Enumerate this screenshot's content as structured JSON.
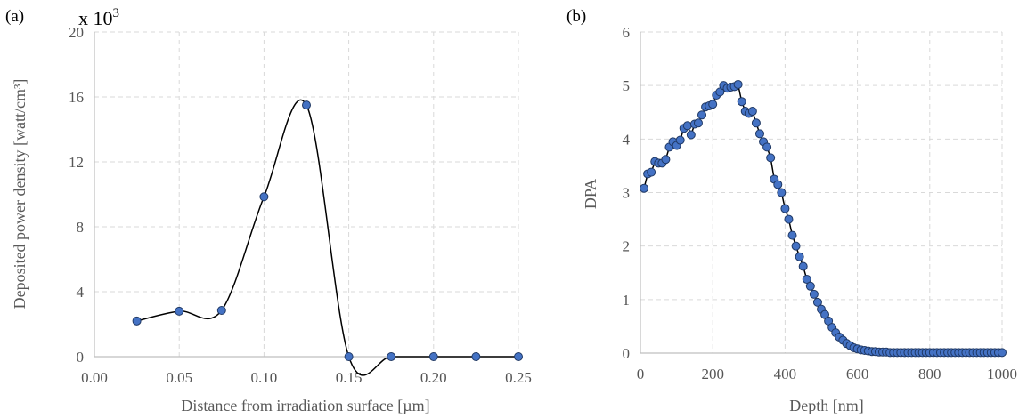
{
  "colors": {
    "marker_fill": "#4472c4",
    "marker_edge": "#1f3864",
    "line": "#000000",
    "grid": "#d9d9d9"
  },
  "chart_data": [
    {
      "type": "scatter",
      "panel_label": "(a)",
      "multiplier_base": "x 10",
      "multiplier_exp": "3",
      "xlabel": "Distance from irradiation surface [µm]",
      "ylabel": "Deposited power density [watt/cm³]",
      "xlim": [
        0,
        0.25
      ],
      "ylim": [
        0,
        20
      ],
      "xticks": [
        0,
        0.05,
        0.1,
        0.15,
        0.2,
        0.25
      ],
      "xtick_labels": [
        "0.00",
        "0.05",
        "0.10",
        "0.15",
        "0.20",
        "0.25"
      ],
      "yticks": [
        0,
        4,
        8,
        12,
        16,
        20
      ],
      "ytick_labels": [
        "0",
        "4",
        "8",
        "12",
        "16",
        "20"
      ],
      "grid": true,
      "smooth_line": true,
      "x": [
        0.025,
        0.05,
        0.075,
        0.1,
        0.125,
        0.15,
        0.175,
        0.2,
        0.225,
        0.25
      ],
      "y": [
        2.2,
        2.8,
        2.85,
        9.85,
        15.5,
        0,
        0,
        0,
        0,
        0
      ]
    },
    {
      "type": "line",
      "panel_label": "(b)",
      "xlabel": "Depth [nm]",
      "ylabel": "DPA",
      "xlim": [
        0,
        1000
      ],
      "ylim": [
        0,
        6
      ],
      "xticks": [
        0,
        200,
        400,
        600,
        800,
        1000
      ],
      "xtick_labels": [
        "0",
        "200",
        "400",
        "600",
        "800",
        "1000"
      ],
      "yticks": [
        0,
        1,
        2,
        3,
        4,
        5,
        6
      ],
      "ytick_labels": [
        "0",
        "1",
        "2",
        "3",
        "4",
        "5",
        "6"
      ],
      "grid": true,
      "x": [
        10,
        20,
        30,
        40,
        50,
        60,
        70,
        80,
        90,
        100,
        110,
        120,
        130,
        140,
        150,
        160,
        170,
        180,
        190,
        200,
        210,
        220,
        230,
        240,
        250,
        260,
        270,
        280,
        290,
        300,
        310,
        320,
        330,
        340,
        350,
        360,
        370,
        380,
        390,
        400,
        410,
        420,
        430,
        440,
        450,
        460,
        470,
        480,
        490,
        500,
        510,
        520,
        530,
        540,
        550,
        560,
        570,
        580,
        590,
        600,
        610,
        620,
        630,
        640,
        650,
        660,
        670,
        680,
        690,
        700,
        710,
        720,
        730,
        740,
        750,
        760,
        770,
        780,
        790,
        800,
        810,
        820,
        830,
        840,
        850,
        860,
        870,
        880,
        890,
        900,
        910,
        920,
        930,
        940,
        950,
        960,
        970,
        980,
        990,
        1000
      ],
      "y": [
        3.08,
        3.35,
        3.38,
        3.58,
        3.55,
        3.55,
        3.62,
        3.85,
        3.95,
        3.88,
        3.98,
        4.2,
        4.25,
        4.08,
        4.28,
        4.3,
        4.45,
        4.6,
        4.62,
        4.65,
        4.82,
        4.88,
        5.0,
        4.95,
        4.97,
        4.98,
        5.02,
        4.7,
        4.52,
        4.48,
        4.52,
        4.3,
        4.1,
        3.95,
        3.85,
        3.65,
        3.25,
        3.15,
        3.0,
        2.7,
        2.5,
        2.2,
        2.0,
        1.8,
        1.62,
        1.38,
        1.25,
        1.1,
        0.95,
        0.82,
        0.72,
        0.6,
        0.48,
        0.38,
        0.3,
        0.24,
        0.18,
        0.14,
        0.1,
        0.08,
        0.06,
        0.05,
        0.04,
        0.03,
        0.03,
        0.02,
        0.02,
        0.02,
        0.01,
        0.01,
        0.01,
        0.01,
        0.01,
        0.01,
        0.01,
        0.01,
        0.01,
        0.01,
        0.01,
        0.01,
        0.01,
        0.01,
        0.01,
        0.01,
        0.01,
        0.01,
        0.01,
        0.01,
        0.01,
        0.01,
        0.01,
        0.01,
        0.01,
        0.01,
        0.01,
        0.01,
        0.01,
        0.01,
        0.01,
        0.01
      ]
    }
  ]
}
